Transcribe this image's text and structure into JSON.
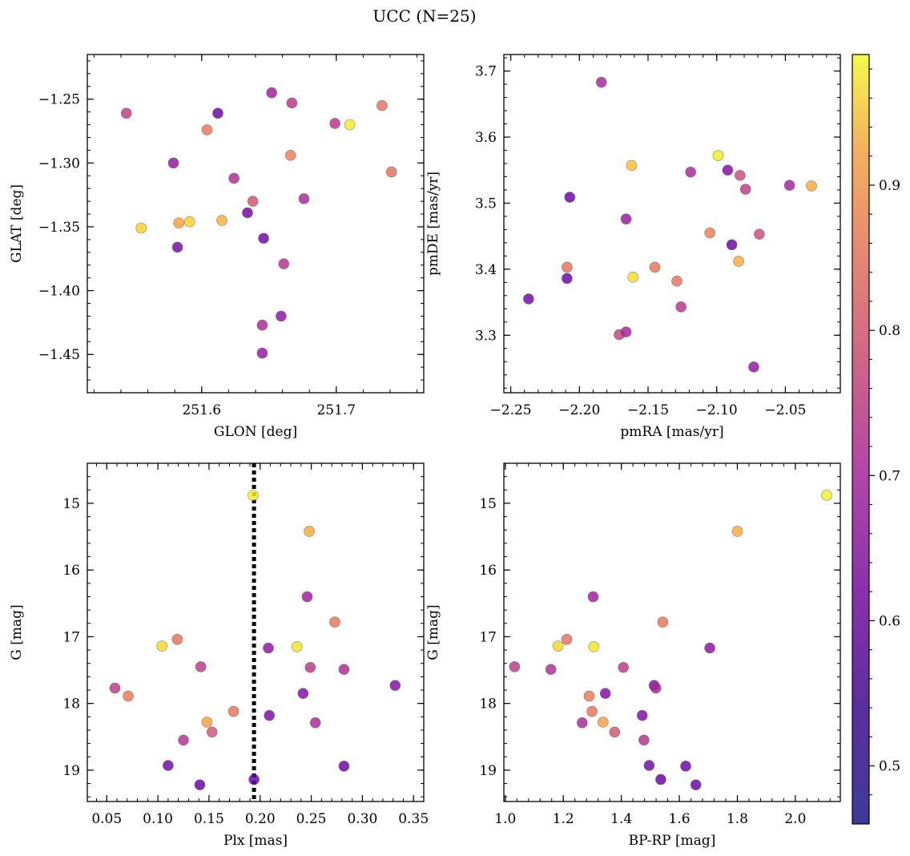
{
  "figure": {
    "title": "UCC (N=25)"
  },
  "colorbar": {
    "vmin": 0.46,
    "vmax": 0.99,
    "ticks": [
      0.5,
      0.6,
      0.7,
      0.8,
      0.9
    ],
    "tick_labels": [
      "0.5",
      "0.6",
      "0.7",
      "0.8",
      "0.9"
    ],
    "colormap": "plasma"
  },
  "chart_data": [
    {
      "type": "scatter",
      "panel": "top-left",
      "xlabel": "GLON [deg]",
      "ylabel": "GLAT [deg]",
      "xlim": [
        251.515,
        251.765
      ],
      "ylim": [
        -1.48,
        -1.215
      ],
      "y_inverted": false,
      "xticks": [
        251.6,
        251.7
      ],
      "xtick_labels": [
        "251.6",
        "251.7"
      ],
      "yticks": [
        -1.25,
        -1.3,
        -1.35,
        -1.4,
        -1.45
      ],
      "ytick_labels": [
        "−1.25",
        "−1.30",
        "−1.35",
        "−1.40",
        "−1.45"
      ],
      "points": [
        {
          "x": 251.544,
          "y": -1.261,
          "c": 0.65
        },
        {
          "x": 251.612,
          "y": -1.261,
          "c": 0.49
        },
        {
          "x": 251.652,
          "y": -1.245,
          "c": 0.58
        },
        {
          "x": 251.667,
          "y": -1.253,
          "c": 0.63
        },
        {
          "x": 251.699,
          "y": -1.269,
          "c": 0.63
        },
        {
          "x": 251.71,
          "y": -1.27,
          "c": 0.97
        },
        {
          "x": 251.734,
          "y": -1.255,
          "c": 0.76
        },
        {
          "x": 251.604,
          "y": -1.274,
          "c": 0.77
        },
        {
          "x": 251.666,
          "y": -1.294,
          "c": 0.79
        },
        {
          "x": 251.741,
          "y": -1.307,
          "c": 0.76
        },
        {
          "x": 251.579,
          "y": -1.3,
          "c": 0.56
        },
        {
          "x": 251.624,
          "y": -1.312,
          "c": 0.61
        },
        {
          "x": 251.638,
          "y": -1.33,
          "c": 0.7
        },
        {
          "x": 251.676,
          "y": -1.328,
          "c": 0.6
        },
        {
          "x": 251.634,
          "y": -1.339,
          "c": 0.5
        },
        {
          "x": 251.555,
          "y": -1.351,
          "c": 0.93
        },
        {
          "x": 251.583,
          "y": -1.347,
          "c": 0.85
        },
        {
          "x": 251.591,
          "y": -1.346,
          "c": 0.93
        },
        {
          "x": 251.615,
          "y": -1.345,
          "c": 0.88
        },
        {
          "x": 251.646,
          "y": -1.359,
          "c": 0.5
        },
        {
          "x": 251.582,
          "y": -1.366,
          "c": 0.51
        },
        {
          "x": 251.661,
          "y": -1.379,
          "c": 0.62
        },
        {
          "x": 251.659,
          "y": -1.42,
          "c": 0.55
        },
        {
          "x": 251.645,
          "y": -1.427,
          "c": 0.6
        },
        {
          "x": 251.645,
          "y": -1.449,
          "c": 0.56
        }
      ]
    },
    {
      "type": "scatter",
      "panel": "top-right",
      "xlabel": "pmRA [mas/yr]",
      "ylabel": "pmDE [mas/yr]",
      "xlim": [
        -2.255,
        -2.01
      ],
      "ylim": [
        3.213,
        3.725
      ],
      "y_inverted": false,
      "xticks": [
        -2.25,
        -2.2,
        -2.15,
        -2.1,
        -2.05
      ],
      "xtick_labels": [
        "−2.25",
        "−2.20",
        "−2.15",
        "−2.10",
        "−2.05"
      ],
      "yticks": [
        3.3,
        3.4,
        3.5,
        3.6,
        3.7
      ],
      "ytick_labels": [
        "3.3",
        "3.4",
        "3.5",
        "3.6",
        "3.7"
      ],
      "points": [
        {
          "x": -2.184,
          "y": 3.683,
          "c": 0.6
        },
        {
          "x": -2.099,
          "y": 3.572,
          "c": 0.97
        },
        {
          "x": -2.162,
          "y": 3.557,
          "c": 0.9
        },
        {
          "x": -2.119,
          "y": 3.547,
          "c": 0.6
        },
        {
          "x": -2.092,
          "y": 3.55,
          "c": 0.53
        },
        {
          "x": -2.083,
          "y": 3.542,
          "c": 0.68
        },
        {
          "x": -2.079,
          "y": 3.521,
          "c": 0.64
        },
        {
          "x": -2.047,
          "y": 3.527,
          "c": 0.59
        },
        {
          "x": -2.031,
          "y": 3.526,
          "c": 0.87
        },
        {
          "x": -2.207,
          "y": 3.509,
          "c": 0.49
        },
        {
          "x": -2.166,
          "y": 3.476,
          "c": 0.57
        },
        {
          "x": -2.105,
          "y": 3.455,
          "c": 0.79
        },
        {
          "x": -2.089,
          "y": 3.437,
          "c": 0.49
        },
        {
          "x": -2.069,
          "y": 3.453,
          "c": 0.68
        },
        {
          "x": -2.084,
          "y": 3.412,
          "c": 0.87
        },
        {
          "x": -2.209,
          "y": 3.403,
          "c": 0.76
        },
        {
          "x": -2.209,
          "y": 3.386,
          "c": 0.49
        },
        {
          "x": -2.161,
          "y": 3.388,
          "c": 0.95
        },
        {
          "x": -2.145,
          "y": 3.403,
          "c": 0.77
        },
        {
          "x": -2.129,
          "y": 3.382,
          "c": 0.76
        },
        {
          "x": -2.237,
          "y": 3.355,
          "c": 0.5
        },
        {
          "x": -2.126,
          "y": 3.343,
          "c": 0.63
        },
        {
          "x": -2.171,
          "y": 3.301,
          "c": 0.66
        },
        {
          "x": -2.166,
          "y": 3.305,
          "c": 0.59
        },
        {
          "x": -2.073,
          "y": 3.252,
          "c": 0.56
        }
      ]
    },
    {
      "type": "scatter",
      "panel": "bottom-left",
      "xlabel": "Plx [mas]",
      "ylabel": "G [mag]",
      "xlim": [
        0.031,
        0.36
      ],
      "ylim": [
        14.4,
        19.47
      ],
      "y_inverted": true,
      "xticks": [
        0.05,
        0.1,
        0.15,
        0.2,
        0.25,
        0.3,
        0.35
      ],
      "xtick_labels": [
        "0.05",
        "0.10",
        "0.15",
        "0.20",
        "0.25",
        "0.30",
        "0.35"
      ],
      "yticks": [
        15,
        16,
        17,
        18,
        19
      ],
      "ytick_labels": [
        "15",
        "16",
        "17",
        "18",
        "19"
      ],
      "vline": {
        "x": 0.194,
        "style": "dotted",
        "color": "#000000"
      },
      "points": [
        {
          "x": 0.193,
          "y": 14.88,
          "c": 0.98
        },
        {
          "x": 0.248,
          "y": 15.42,
          "c": 0.87
        },
        {
          "x": 0.246,
          "y": 16.4,
          "c": 0.58
        },
        {
          "x": 0.273,
          "y": 16.78,
          "c": 0.77
        },
        {
          "x": 0.119,
          "y": 17.04,
          "c": 0.76
        },
        {
          "x": 0.104,
          "y": 17.14,
          "c": 0.94
        },
        {
          "x": 0.236,
          "y": 17.15,
          "c": 0.96
        },
        {
          "x": 0.208,
          "y": 17.17,
          "c": 0.55
        },
        {
          "x": 0.142,
          "y": 17.45,
          "c": 0.64
        },
        {
          "x": 0.249,
          "y": 17.46,
          "c": 0.64
        },
        {
          "x": 0.282,
          "y": 17.49,
          "c": 0.61
        },
        {
          "x": 0.332,
          "y": 17.73,
          "c": 0.53
        },
        {
          "x": 0.058,
          "y": 17.77,
          "c": 0.64
        },
        {
          "x": 0.071,
          "y": 17.89,
          "c": 0.78
        },
        {
          "x": 0.242,
          "y": 17.85,
          "c": 0.53
        },
        {
          "x": 0.174,
          "y": 18.12,
          "c": 0.77
        },
        {
          "x": 0.148,
          "y": 18.28,
          "c": 0.85
        },
        {
          "x": 0.209,
          "y": 18.18,
          "c": 0.52
        },
        {
          "x": 0.254,
          "y": 18.29,
          "c": 0.6
        },
        {
          "x": 0.153,
          "y": 18.43,
          "c": 0.7
        },
        {
          "x": 0.125,
          "y": 18.55,
          "c": 0.62
        },
        {
          "x": 0.11,
          "y": 18.93,
          "c": 0.5
        },
        {
          "x": 0.282,
          "y": 18.94,
          "c": 0.49
        },
        {
          "x": 0.141,
          "y": 19.22,
          "c": 0.49
        },
        {
          "x": 0.194,
          "y": 19.14,
          "c": 0.48
        }
      ]
    },
    {
      "type": "scatter",
      "panel": "bottom-right",
      "xlabel": "BP-RP [mag]",
      "ylabel": "G [mag]",
      "xlim": [
        0.995,
        2.155
      ],
      "ylim": [
        14.4,
        19.47
      ],
      "y_inverted": true,
      "xticks": [
        1.0,
        1.2,
        1.4,
        1.6,
        1.8,
        2.0
      ],
      "xtick_labels": [
        "1.0",
        "1.2",
        "1.4",
        "1.6",
        "1.8",
        "2.0"
      ],
      "yticks": [
        15,
        16,
        17,
        18,
        19
      ],
      "ytick_labels": [
        "15",
        "16",
        "17",
        "18",
        "19"
      ],
      "points": [
        {
          "x": 2.108,
          "y": 14.88,
          "c": 0.98
        },
        {
          "x": 1.8,
          "y": 15.42,
          "c": 0.87
        },
        {
          "x": 1.303,
          "y": 16.4,
          "c": 0.58
        },
        {
          "x": 1.543,
          "y": 16.78,
          "c": 0.77
        },
        {
          "x": 1.212,
          "y": 17.04,
          "c": 0.76
        },
        {
          "x": 1.182,
          "y": 17.14,
          "c": 0.94
        },
        {
          "x": 1.305,
          "y": 17.15,
          "c": 0.96
        },
        {
          "x": 1.705,
          "y": 17.17,
          "c": 0.55
        },
        {
          "x": 1.032,
          "y": 17.45,
          "c": 0.64
        },
        {
          "x": 1.407,
          "y": 17.46,
          "c": 0.64
        },
        {
          "x": 1.157,
          "y": 17.49,
          "c": 0.61
        },
        {
          "x": 1.513,
          "y": 17.73,
          "c": 0.53
        },
        {
          "x": 1.519,
          "y": 17.77,
          "c": 0.6
        },
        {
          "x": 1.345,
          "y": 17.85,
          "c": 0.53
        },
        {
          "x": 1.289,
          "y": 17.89,
          "c": 0.78
        },
        {
          "x": 1.299,
          "y": 18.12,
          "c": 0.77
        },
        {
          "x": 1.472,
          "y": 18.18,
          "c": 0.52
        },
        {
          "x": 1.337,
          "y": 18.28,
          "c": 0.85
        },
        {
          "x": 1.265,
          "y": 18.29,
          "c": 0.6
        },
        {
          "x": 1.377,
          "y": 18.43,
          "c": 0.7
        },
        {
          "x": 1.478,
          "y": 18.55,
          "c": 0.62
        },
        {
          "x": 1.496,
          "y": 18.93,
          "c": 0.5
        },
        {
          "x": 1.622,
          "y": 18.94,
          "c": 0.49
        },
        {
          "x": 1.536,
          "y": 19.14,
          "c": 0.48
        },
        {
          "x": 1.657,
          "y": 19.22,
          "c": 0.49
        }
      ]
    }
  ]
}
